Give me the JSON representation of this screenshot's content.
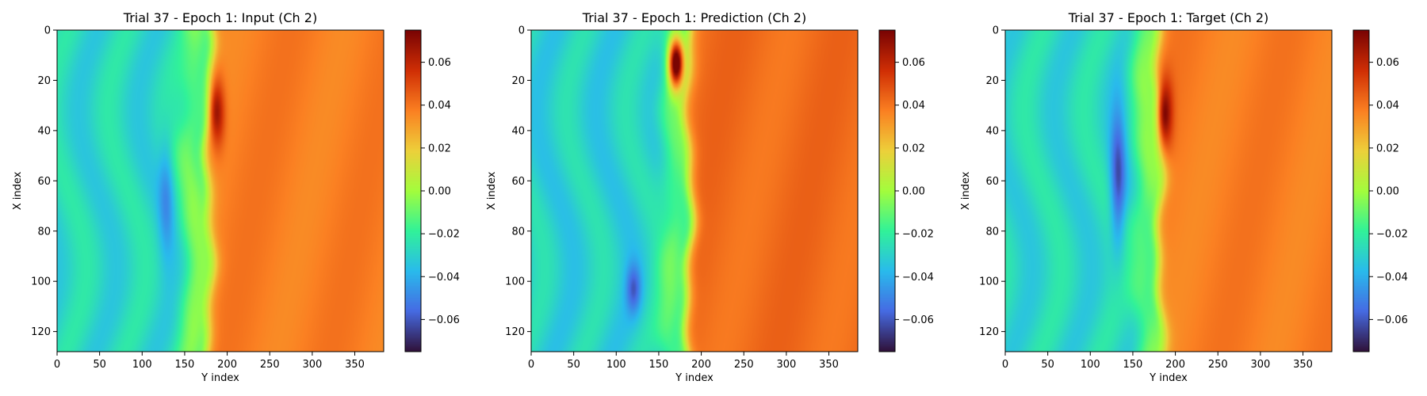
{
  "chart_data": [
    {
      "type": "heatmap",
      "title": "Trial 37 - Epoch 1: Input (Ch 2)",
      "xlabel": "Y index",
      "ylabel": "X index",
      "xlim": [
        0,
        384
      ],
      "ylim": [
        128,
        0
      ],
      "x_ticks": [
        0,
        50,
        100,
        150,
        200,
        250,
        300,
        350
      ],
      "y_ticks": [
        0,
        20,
        40,
        60,
        80,
        100,
        120
      ],
      "colorbar": {
        "range": [
          -0.075,
          0.075
        ],
        "ticks": [
          "0.06",
          "0.04",
          "0.02",
          "0.00",
          "−0.02",
          "−0.04",
          "−0.06"
        ],
        "colormap": "turbo"
      },
      "front_position": 178,
      "background_left": -0.028,
      "background_right": 0.038,
      "features": [
        {
          "kind": "trough",
          "x_center": 128,
          "y_range": [
            35,
            95
          ],
          "value": -0.045
        },
        {
          "kind": "peak",
          "x_center": 188,
          "y_range": [
            15,
            50
          ],
          "value": 0.068
        }
      ]
    },
    {
      "type": "heatmap",
      "title": "Trial 37 - Epoch 1: Prediction (Ch 2)",
      "xlabel": "Y index",
      "ylabel": "X index",
      "xlim": [
        0,
        384
      ],
      "ylim": [
        128,
        0
      ],
      "x_ticks": [
        0,
        50,
        100,
        150,
        200,
        250,
        300,
        350
      ],
      "y_ticks": [
        0,
        20,
        40,
        60,
        80,
        100,
        120
      ],
      "colorbar": {
        "range": [
          -0.075,
          0.075
        ],
        "ticks": [
          "0.06",
          "0.04",
          "0.02",
          "0.00",
          "−0.02",
          "−0.04",
          "−0.06"
        ],
        "colormap": "turbo"
      },
      "front_position": 185,
      "background_left": -0.03,
      "background_right": 0.042,
      "features": [
        {
          "kind": "peak",
          "x_center": 170,
          "y_range": [
            0,
            25
          ],
          "value": 0.072
        },
        {
          "kind": "trough",
          "x_center": 120,
          "y_range": [
            90,
            115
          ],
          "value": -0.055
        }
      ]
    },
    {
      "type": "heatmap",
      "title": "Trial 37 - Epoch 1: Target (Ch 2)",
      "xlabel": "Y index",
      "ylabel": "X index",
      "xlim": [
        0,
        384
      ],
      "ylim": [
        128,
        0
      ],
      "x_ticks": [
        0,
        50,
        100,
        150,
        200,
        250,
        300,
        350
      ],
      "y_ticks": [
        0,
        20,
        40,
        60,
        80,
        100,
        120
      ],
      "colorbar": {
        "range": [
          -0.075,
          0.075
        ],
        "ticks": [
          "0.06",
          "0.04",
          "0.02",
          "0.00",
          "−0.02",
          "−0.04",
          "−0.06"
        ],
        "colormap": "turbo"
      },
      "front_position": 182,
      "background_left": -0.028,
      "background_right": 0.038,
      "features": [
        {
          "kind": "trough",
          "x_center": 132,
          "y_range": [
            25,
            95
          ],
          "value": -0.06
        },
        {
          "kind": "peak",
          "x_center": 188,
          "y_range": [
            15,
            50
          ],
          "value": 0.07
        }
      ]
    }
  ]
}
